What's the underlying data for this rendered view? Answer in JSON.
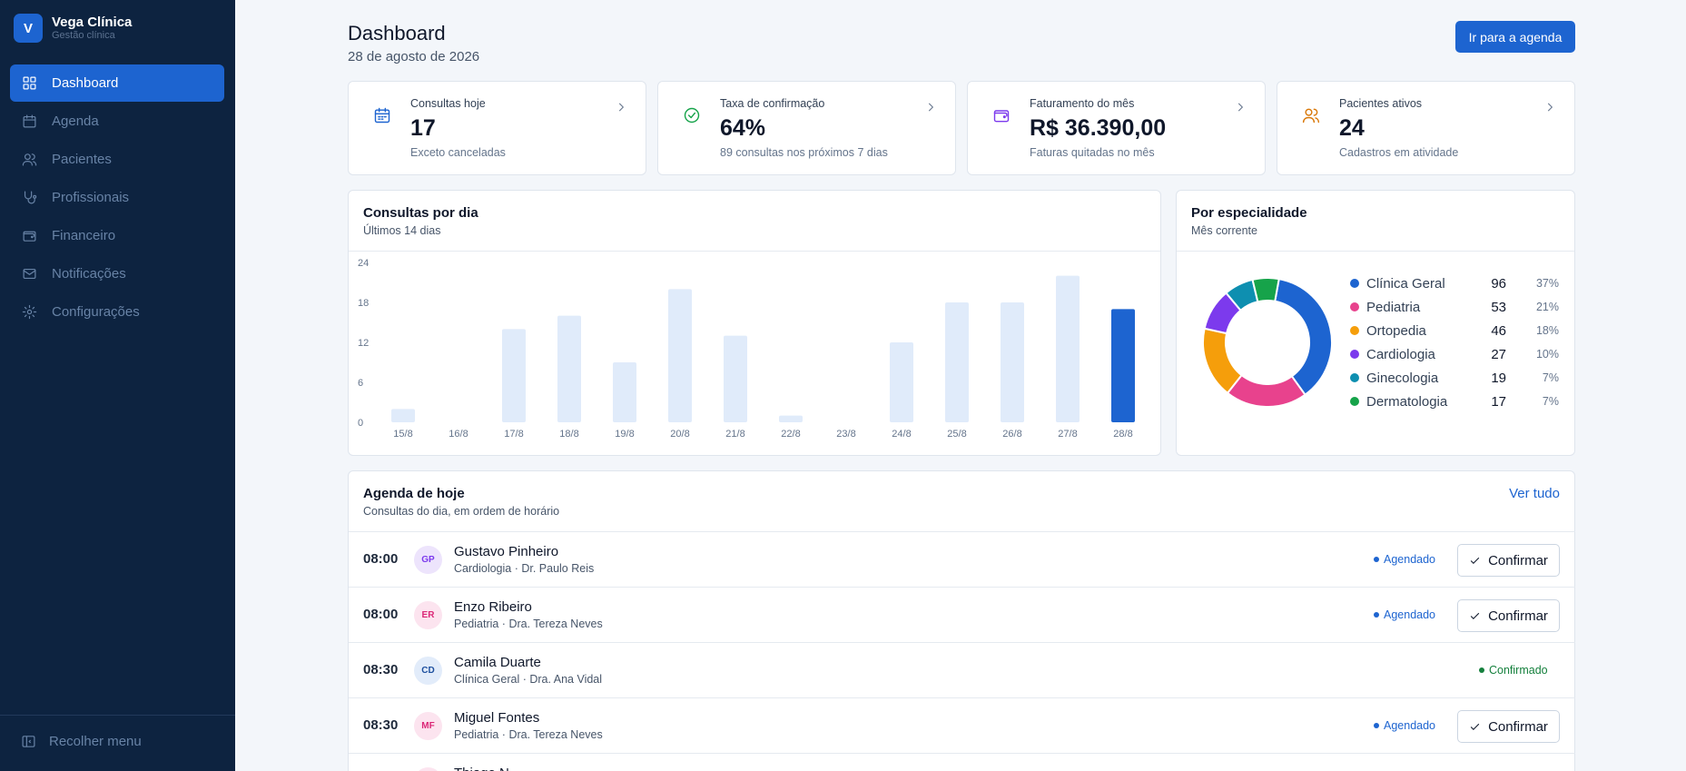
{
  "app": {
    "logo_letter": "V",
    "name": "Vega Clínica",
    "subtitle": "Gestão clínica"
  },
  "sidebar": {
    "items": [
      {
        "label": "Dashboard",
        "icon": "grid-icon",
        "active": true
      },
      {
        "label": "Agenda",
        "icon": "calendar-icon"
      },
      {
        "label": "Pacientes",
        "icon": "users-icon"
      },
      {
        "label": "Profissionais",
        "icon": "stethoscope-icon"
      },
      {
        "label": "Financeiro",
        "icon": "wallet-icon"
      },
      {
        "label": "Notificações",
        "icon": "mail-icon"
      },
      {
        "label": "Configurações",
        "icon": "gear-icon"
      }
    ],
    "collapse_label": "Recolher menu"
  },
  "header": {
    "title": "Dashboard",
    "date": "28 de agosto de 2026",
    "cta_label": "Ir para a agenda"
  },
  "kpis": [
    {
      "label": "Consultas hoje",
      "value": "17",
      "sub": "Exceto canceladas",
      "icon": "calendar-icon",
      "color": "#1d64d0"
    },
    {
      "label": "Taxa de confirmação",
      "value": "64%",
      "sub": "89 consultas nos próximos 7 dias",
      "icon": "check-circle-icon",
      "color": "#16a34a"
    },
    {
      "label": "Faturamento do mês",
      "value": "R$ 36.390,00",
      "sub": "Faturas quitadas no mês",
      "icon": "wallet-icon",
      "color": "#7c3aed"
    },
    {
      "label": "Pacientes ativos",
      "value": "24",
      "sub": "Cadastros em atividade",
      "icon": "users-icon",
      "color": "#d97706"
    }
  ],
  "daily_chart": {
    "title": "Consultas por dia",
    "subtitle": "Últimos 14 dias",
    "chart_data": {
      "type": "bar",
      "categories": [
        "15/8",
        "16/8",
        "17/8",
        "18/8",
        "19/8",
        "20/8",
        "21/8",
        "22/8",
        "23/8",
        "24/8",
        "25/8",
        "26/8",
        "27/8",
        "28/8"
      ],
      "values": [
        2,
        0,
        14,
        16,
        9,
        20,
        13,
        1,
        0,
        12,
        18,
        18,
        22,
        17
      ],
      "yticks": [
        0,
        6,
        12,
        18,
        24
      ],
      "ylim": [
        0,
        24
      ],
      "bar_color": "#e0ebfa",
      "highlight_color": "#1d64d0",
      "highlight_index": 13
    }
  },
  "specialty_chart": {
    "title": "Por especialidade",
    "subtitle": "Mês corrente",
    "chart_data": {
      "type": "pie",
      "labels": [
        "Clínica Geral",
        "Pediatria",
        "Ortopedia",
        "Cardiologia",
        "Ginecologia",
        "Dermatologia"
      ],
      "values": [
        96,
        53,
        46,
        27,
        19,
        17
      ],
      "percents": [
        "37%",
        "21%",
        "18%",
        "10%",
        "7%",
        "7%"
      ],
      "colors": [
        "#1d64d0",
        "#e8428d",
        "#f59e0b",
        "#7c3aed",
        "#0e8fb0",
        "#16a34a"
      ]
    }
  },
  "schedule": {
    "title": "Agenda de hoje",
    "subtitle": "Consultas do dia, em ordem de horário",
    "view_all_label": "Ver tudo",
    "confirm_label": "Confirmar",
    "appointments": [
      {
        "time": "08:00",
        "initials": "GP",
        "patient": "Gustavo Pinheiro",
        "detail": "Cardiologia · Dr. Paulo Reis",
        "status": "Agendado",
        "status_color": "#1d64d0",
        "avatar_bg": "#ede4fc",
        "avatar_fg": "#7c3aed",
        "can_confirm": true
      },
      {
        "time": "08:00",
        "initials": "ER",
        "patient": "Enzo Ribeiro",
        "detail": "Pediatria · Dra. Tereza Neves",
        "status": "Agendado",
        "status_color": "#1d64d0",
        "avatar_bg": "#fce4ef",
        "avatar_fg": "#db2777",
        "can_confirm": true
      },
      {
        "time": "08:30",
        "initials": "CD",
        "patient": "Camila Duarte",
        "detail": "Clínica Geral · Dra. Ana Vidal",
        "status": "Confirmado",
        "status_color": "#15803d",
        "avatar_bg": "#e2ecfa",
        "avatar_fg": "#1d4f9e",
        "can_confirm": false
      },
      {
        "time": "08:30",
        "initials": "MF",
        "patient": "Miguel Fontes",
        "detail": "Pediatria · Dra. Tereza Neves",
        "status": "Agendado",
        "status_color": "#1d64d0",
        "avatar_bg": "#fce4ef",
        "avatar_fg": "#db2777",
        "can_confirm": true
      },
      {
        "time": "",
        "initials": "",
        "patient": "Thiago N",
        "detail": "",
        "status": "",
        "status_color": "#1d64d0",
        "avatar_bg": "#fce4ef",
        "avatar_fg": "#db2777",
        "can_confirm": false
      }
    ]
  }
}
